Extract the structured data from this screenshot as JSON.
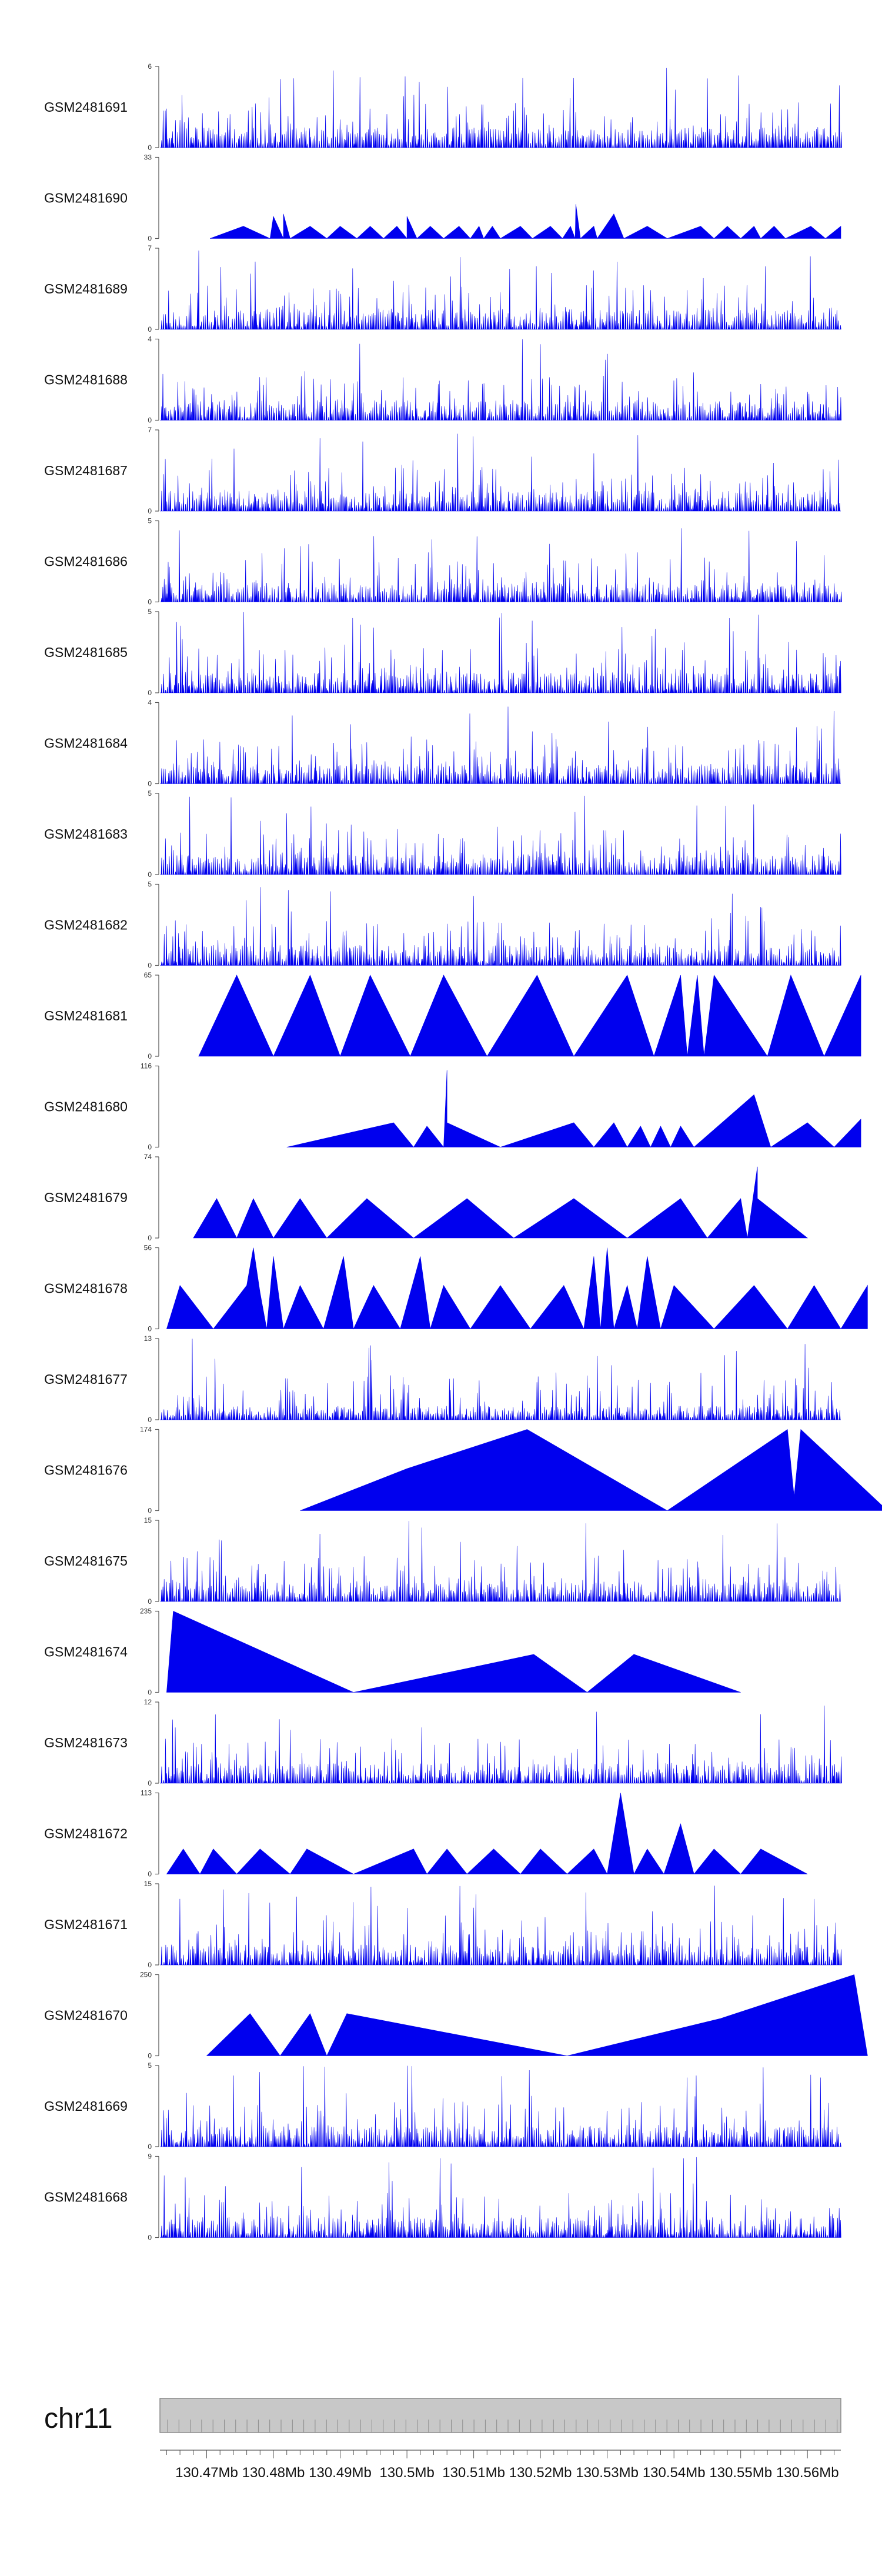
{
  "chart_data": {
    "type": "area",
    "title": "",
    "colors": {
      "signal": "#0000ee",
      "axis": "#555555",
      "ideogram": "#c8c8c8"
    },
    "chromosome": "chr11",
    "x_range_mb": [
      130.463,
      130.565
    ],
    "x_tick_labels": [
      "130.47Mb",
      "130.48Mb",
      "130.49Mb",
      "130.5Mb",
      "130.51Mb",
      "130.52Mb",
      "130.53Mb",
      "130.54Mb",
      "130.55Mb",
      "130.56Mb"
    ],
    "x_tick_values": [
      130.47,
      130.48,
      130.49,
      130.5,
      130.51,
      130.52,
      130.53,
      130.54,
      130.55,
      130.56
    ],
    "tracks": [
      {
        "name": "GSM2481691",
        "ymax": "6",
        "yzero": "0",
        "ymax_value": 6,
        "style": "dense",
        "seed": 11
      },
      {
        "name": "GSM2481690",
        "ymax": "33",
        "yzero": "0",
        "ymax_value": 33,
        "style": "sparse",
        "peaks": [
          [
            130.4705,
            0
          ],
          [
            130.4755,
            5
          ],
          [
            130.4795,
            0
          ],
          [
            130.48,
            9
          ],
          [
            130.4815,
            0
          ],
          [
            130.4815,
            10
          ],
          [
            130.4825,
            0
          ],
          [
            130.4855,
            5
          ],
          [
            130.488,
            0
          ],
          [
            130.49,
            5
          ],
          [
            130.4925,
            0
          ],
          [
            130.4945,
            5
          ],
          [
            130.4965,
            0
          ],
          [
            130.4985,
            5
          ],
          [
            130.5,
            0
          ],
          [
            130.5,
            9
          ],
          [
            130.5015,
            0
          ],
          [
            130.5035,
            5
          ],
          [
            130.5055,
            0
          ],
          [
            130.5078,
            5
          ],
          [
            130.5095,
            0
          ],
          [
            130.5108,
            5
          ],
          [
            130.5115,
            0
          ],
          [
            130.5128,
            5
          ],
          [
            130.514,
            0
          ],
          [
            130.517,
            5
          ],
          [
            130.5188,
            0
          ],
          [
            130.5215,
            5
          ],
          [
            130.5233,
            0
          ],
          [
            130.5245,
            5
          ],
          [
            130.5252,
            0
          ],
          [
            130.5253,
            14
          ],
          [
            130.526,
            0
          ],
          [
            130.528,
            5
          ],
          [
            130.5285,
            0
          ],
          [
            130.531,
            10
          ],
          [
            130.5325,
            0
          ],
          [
            130.536,
            5
          ],
          [
            130.539,
            0
          ],
          [
            130.544,
            5
          ],
          [
            130.546,
            0
          ],
          [
            130.548,
            5
          ],
          [
            130.55,
            0
          ],
          [
            130.552,
            5
          ],
          [
            130.553,
            0
          ],
          [
            130.555,
            5
          ],
          [
            130.5567,
            0
          ],
          [
            130.5605,
            5
          ],
          [
            130.5627,
            0
          ],
          [
            130.565,
            5
          ]
        ]
      },
      {
        "name": "GSM2481689",
        "ymax": "7",
        "yzero": "0",
        "ymax_value": 7,
        "style": "dense",
        "seed": 23
      },
      {
        "name": "GSM2481688",
        "ymax": "4",
        "yzero": "0",
        "ymax_value": 4,
        "style": "dense",
        "seed": 37
      },
      {
        "name": "GSM2481687",
        "ymax": "7",
        "yzero": "0",
        "ymax_value": 7,
        "style": "dense",
        "seed": 41
      },
      {
        "name": "GSM2481686",
        "ymax": "5",
        "yzero": "0",
        "ymax_value": 5,
        "style": "dense",
        "seed": 53
      },
      {
        "name": "GSM2481685",
        "ymax": "5",
        "yzero": "0",
        "ymax_value": 5,
        "style": "dense",
        "seed": 67
      },
      {
        "name": "GSM2481684",
        "ymax": "4",
        "yzero": "0",
        "ymax_value": 4,
        "style": "dense",
        "seed": 71
      },
      {
        "name": "GSM2481683",
        "ymax": "5",
        "yzero": "0",
        "ymax_value": 5,
        "style": "dense",
        "seed": 83
      },
      {
        "name": "GSM2481682",
        "ymax": "5",
        "yzero": "0",
        "ymax_value": 5,
        "style": "dense",
        "seed": 97
      },
      {
        "name": "GSM2481681",
        "ymax": "65",
        "yzero": "0",
        "ymax_value": 65,
        "style": "sparse",
        "peaks": [
          [
            130.4688,
            0
          ],
          [
            130.4745,
            65
          ],
          [
            130.48,
            0
          ],
          [
            130.4855,
            65
          ],
          [
            130.49,
            0
          ],
          [
            130.4945,
            65
          ],
          [
            130.5005,
            0
          ],
          [
            130.5055,
            65
          ],
          [
            130.512,
            0
          ],
          [
            130.5195,
            65
          ],
          [
            130.525,
            0
          ],
          [
            130.533,
            65
          ],
          [
            130.537,
            0
          ],
          [
            130.541,
            65
          ],
          [
            130.542,
            0
          ],
          [
            130.5435,
            65
          ],
          [
            130.5445,
            0
          ],
          [
            130.546,
            65
          ],
          [
            130.554,
            0
          ],
          [
            130.5575,
            65
          ],
          [
            130.5625,
            0
          ],
          [
            130.568,
            65
          ]
        ]
      },
      {
        "name": "GSM2481680",
        "ymax": "116",
        "yzero": "0",
        "ymax_value": 116,
        "style": "sparse",
        "peaks": [
          [
            130.482,
            0
          ],
          [
            130.498,
            35
          ],
          [
            130.501,
            0
          ],
          [
            130.503,
            30
          ],
          [
            130.5055,
            0
          ],
          [
            130.506,
            110
          ],
          [
            130.506,
            35
          ],
          [
            130.514,
            0
          ],
          [
            130.525,
            35
          ],
          [
            130.528,
            0
          ],
          [
            130.531,
            35
          ],
          [
            130.533,
            0
          ],
          [
            130.535,
            30
          ],
          [
            130.5365,
            0
          ],
          [
            130.538,
            30
          ],
          [
            130.5395,
            0
          ],
          [
            130.541,
            30
          ],
          [
            130.543,
            0
          ],
          [
            130.552,
            75
          ],
          [
            130.5545,
            0
          ],
          [
            130.56,
            35
          ],
          [
            130.564,
            0
          ],
          [
            130.568,
            40
          ]
        ]
      },
      {
        "name": "GSM2481679",
        "ymax": "74",
        "yzero": "0",
        "ymax_value": 74,
        "style": "sparse",
        "peaks": [
          [
            130.468,
            0
          ],
          [
            130.4715,
            36
          ],
          [
            130.4745,
            0
          ],
          [
            130.477,
            36
          ],
          [
            130.48,
            0
          ],
          [
            130.484,
            36
          ],
          [
            130.488,
            0
          ],
          [
            130.494,
            36
          ],
          [
            130.501,
            0
          ],
          [
            130.509,
            36
          ],
          [
            130.516,
            0
          ],
          [
            130.525,
            36
          ],
          [
            130.533,
            0
          ],
          [
            130.541,
            36
          ],
          [
            130.545,
            0
          ],
          [
            130.55,
            36
          ],
          [
            130.551,
            0
          ],
          [
            130.5525,
            65
          ],
          [
            130.5525,
            36
          ],
          [
            130.56,
            0
          ]
        ]
      },
      {
        "name": "GSM2481678",
        "ymax": "56",
        "yzero": "0",
        "ymax_value": 56,
        "style": "sparse",
        "peaks": [
          [
            130.464,
            0
          ],
          [
            130.466,
            30
          ],
          [
            130.471,
            0
          ],
          [
            130.476,
            30
          ],
          [
            130.477,
            56
          ],
          [
            130.478,
            25
          ],
          [
            130.479,
            0
          ],
          [
            130.48,
            50
          ],
          [
            130.4815,
            0
          ],
          [
            130.484,
            30
          ],
          [
            130.4875,
            0
          ],
          [
            130.4905,
            50
          ],
          [
            130.492,
            0
          ],
          [
            130.495,
            30
          ],
          [
            130.499,
            0
          ],
          [
            130.502,
            50
          ],
          [
            130.5035,
            0
          ],
          [
            130.5055,
            30
          ],
          [
            130.5095,
            0
          ],
          [
            130.514,
            30
          ],
          [
            130.5185,
            0
          ],
          [
            130.5235,
            30
          ],
          [
            130.5265,
            0
          ],
          [
            130.528,
            50
          ],
          [
            130.529,
            0
          ],
          [
            130.53,
            56
          ],
          [
            130.531,
            0
          ],
          [
            130.533,
            30
          ],
          [
            130.5345,
            0
          ],
          [
            130.536,
            50
          ],
          [
            130.538,
            0
          ],
          [
            130.54,
            30
          ],
          [
            130.546,
            0
          ],
          [
            130.552,
            30
          ],
          [
            130.557,
            0
          ],
          [
            130.561,
            30
          ],
          [
            130.565,
            0
          ],
          [
            130.569,
            30
          ]
        ]
      },
      {
        "name": "GSM2481677",
        "ymax": "13",
        "yzero": "0",
        "ymax_value": 13,
        "style": "dense",
        "seed": 101,
        "lowfill": true
      },
      {
        "name": "GSM2481676",
        "ymax": "174",
        "yzero": "0",
        "ymax_value": 174,
        "style": "sparse",
        "peaks": [
          [
            130.484,
            0
          ],
          [
            130.5,
            90
          ],
          [
            130.518,
            174
          ],
          [
            130.539,
            0
          ],
          [
            130.557,
            174
          ],
          [
            130.558,
            30
          ],
          [
            130.559,
            174
          ],
          [
            130.572,
            0
          ]
        ]
      },
      {
        "name": "GSM2481675",
        "ymax": "15",
        "yzero": "0",
        "ymax_value": 15,
        "style": "dense",
        "seed": 113
      },
      {
        "name": "GSM2481674",
        "ymax": "235",
        "yzero": "0",
        "ymax_value": 235,
        "style": "sparse",
        "peaks": [
          [
            130.464,
            0
          ],
          [
            130.465,
            235
          ],
          [
            130.492,
            0
          ],
          [
            130.519,
            110
          ],
          [
            130.527,
            0
          ],
          [
            130.534,
            110
          ],
          [
            130.55,
            0
          ]
        ]
      },
      {
        "name": "GSM2481673",
        "ymax": "12",
        "yzero": "0",
        "ymax_value": 12,
        "style": "dense",
        "seed": 127
      },
      {
        "name": "GSM2481672",
        "ymax": "113",
        "yzero": "0",
        "ymax_value": 113,
        "style": "sparse",
        "peaks": [
          [
            130.464,
            0
          ],
          [
            130.4665,
            35
          ],
          [
            130.469,
            0
          ],
          [
            130.471,
            35
          ],
          [
            130.4745,
            0
          ],
          [
            130.478,
            35
          ],
          [
            130.4825,
            0
          ],
          [
            130.485,
            35
          ],
          [
            130.492,
            0
          ],
          [
            130.501,
            35
          ],
          [
            130.503,
            0
          ],
          [
            130.506,
            35
          ],
          [
            130.509,
            0
          ],
          [
            130.513,
            35
          ],
          [
            130.517,
            0
          ],
          [
            130.52,
            35
          ],
          [
            130.524,
            0
          ],
          [
            130.528,
            35
          ],
          [
            130.53,
            0
          ],
          [
            130.532,
            113
          ],
          [
            130.534,
            0
          ],
          [
            130.536,
            35
          ],
          [
            130.5385,
            0
          ],
          [
            130.541,
            70
          ],
          [
            130.543,
            0
          ],
          [
            130.546,
            35
          ],
          [
            130.55,
            0
          ],
          [
            130.553,
            35
          ],
          [
            130.56,
            0
          ]
        ]
      },
      {
        "name": "GSM2481671",
        "ymax": "15",
        "yzero": "0",
        "ymax_value": 15,
        "style": "dense",
        "seed": 139
      },
      {
        "name": "GSM2481670",
        "ymax": "250",
        "yzero": "0",
        "ymax_value": 250,
        "style": "sparse",
        "peaks": [
          [
            130.47,
            0
          ],
          [
            130.4765,
            130
          ],
          [
            130.481,
            0
          ],
          [
            130.4855,
            130
          ],
          [
            130.488,
            0
          ],
          [
            130.491,
            130
          ],
          [
            130.524,
            0
          ],
          [
            130.547,
            115
          ],
          [
            130.567,
            250
          ],
          [
            130.569,
            0
          ]
        ]
      },
      {
        "name": "GSM2481669",
        "ymax": "5",
        "yzero": "0",
        "ymax_value": 5,
        "style": "dense",
        "seed": 149
      },
      {
        "name": "GSM2481668",
        "ymax": "9",
        "yzero": "0",
        "ymax_value": 9,
        "style": "dense",
        "seed": 157
      }
    ]
  }
}
